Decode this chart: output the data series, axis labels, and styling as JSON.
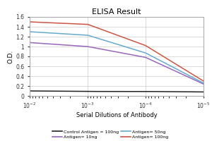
{
  "title": "ELISA Result",
  "ylabel": "O.D.",
  "xlabel": "Serial Dilutions of Antibody",
  "x_values": [
    0.01,
    0.001,
    0.0001,
    1e-05
  ],
  "lines": [
    {
      "label": "Control Antigen = 100ng",
      "color": "#222222",
      "y": [
        0.1,
        0.09,
        0.09,
        0.08
      ]
    },
    {
      "label": "Antigen= 10ng",
      "color": "#9966bb",
      "y": [
        1.08,
        1.0,
        0.78,
        0.24
      ]
    },
    {
      "label": "Antigen= 50ng",
      "color": "#66aacc",
      "y": [
        1.3,
        1.23,
        0.87,
        0.26
      ]
    },
    {
      "label": "Antigen= 100ng",
      "color": "#cc5544",
      "y": [
        1.5,
        1.45,
        1.02,
        0.3
      ]
    }
  ],
  "ylim": [
    0,
    1.6
  ],
  "yticks": [
    0,
    0.2,
    0.4,
    0.6,
    0.8,
    1.0,
    1.2,
    1.4,
    1.6
  ],
  "xtick_positions": [
    0.01,
    0.001,
    0.0001,
    1e-05
  ],
  "xtick_labels": [
    "10^{-2}",
    "10^{-3}",
    "10^{-4}",
    "10^{-5}"
  ],
  "grid_color": "#cccccc",
  "legend_items": [
    {
      "label": "Control Antigen = 100ng",
      "color": "#222222"
    },
    {
      "label": "Antigen= 10ng",
      "color": "#9966bb"
    },
    {
      "label": "Antigen= 50ng",
      "color": "#66aacc"
    },
    {
      "label": "Antigen= 100ng",
      "color": "#cc5544"
    }
  ]
}
